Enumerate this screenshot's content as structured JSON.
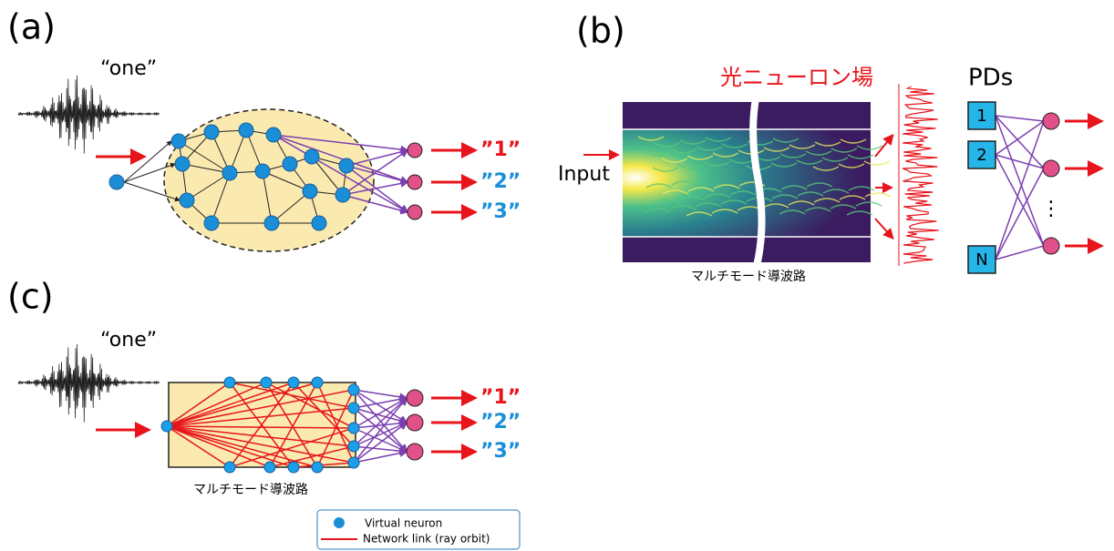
{
  "panels": [
    {
      "label": "(a)",
      "word": "“one”",
      "outputs": [
        "”1”",
        "”2”",
        "”3”"
      ]
    },
    {
      "label": "(b)",
      "field_title": "光ニューロン場",
      "detectors_title": "PDs",
      "input_label": "Input",
      "waveguide_label": "マルチモード導波路",
      "detectors": [
        "1",
        "2",
        "N"
      ],
      "ellipsis": "⋮"
    },
    {
      "label": "(c)",
      "word": "“one”",
      "outputs": [
        "”1”",
        "”2”",
        "”3”"
      ],
      "waveguide_label": "マルチモード導波路"
    }
  ],
  "legend": {
    "items": [
      "Virtual neuron",
      "Network link (ray orbit)"
    ]
  }
}
